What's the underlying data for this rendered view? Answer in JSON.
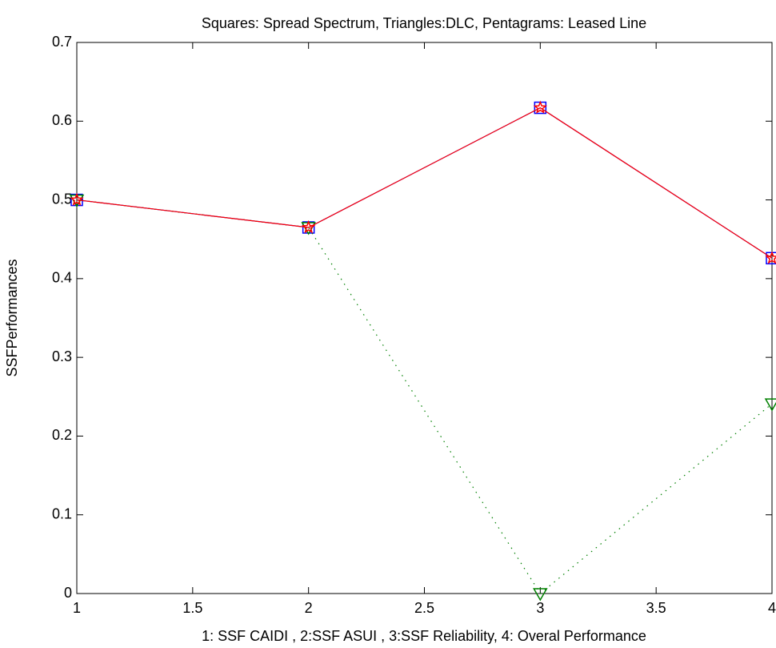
{
  "chart_data": {
    "type": "line",
    "title": "Squares: Spread Spectrum, Triangles:DLC, Pentagrams: Leased Line",
    "x_label": "1: SSF CAIDI , 2:SSF ASUI , 3:SSF Reliability, 4: Overal Performance",
    "y_label": "SSFPerformances",
    "x": [
      1,
      2,
      3,
      4
    ],
    "series": [
      {
        "color": "#0000ff",
        "marker": "square",
        "line_style": "solid",
        "values": [
          0.5,
          0.465,
          0.617,
          0.426
        ]
      },
      {
        "color": "#008000",
        "marker": "triangle-down",
        "line_style": "dotted",
        "values": [
          0.5,
          0.465,
          0,
          0.241
        ]
      },
      {
        "color": "#ff0000",
        "marker": "pentagram",
        "line_style": "solid",
        "values": [
          0.5,
          0.465,
          0.617,
          0.426
        ]
      }
    ],
    "xlim": [
      1,
      4
    ],
    "xticks": [
      1,
      1.5,
      2,
      2.5,
      3,
      3.5,
      4
    ],
    "ylim": [
      0,
      0.7
    ],
    "yticks": [
      0,
      0.1,
      0.2,
      0.3,
      0.4,
      0.5,
      0.6,
      0.7
    ],
    "grid": false
  }
}
